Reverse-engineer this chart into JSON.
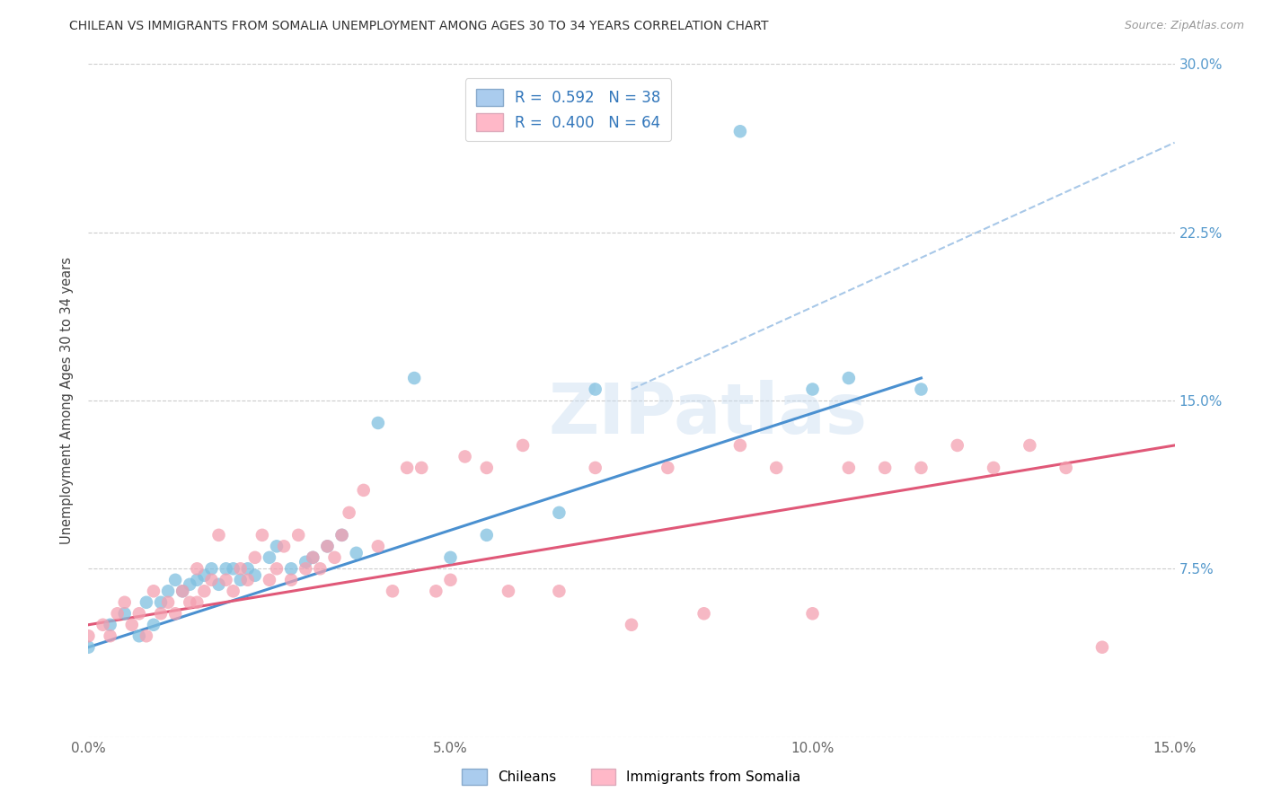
{
  "title": "CHILEAN VS IMMIGRANTS FROM SOMALIA UNEMPLOYMENT AMONG AGES 30 TO 34 YEARS CORRELATION CHART",
  "source": "Source: ZipAtlas.com",
  "ylabel": "Unemployment Among Ages 30 to 34 years",
  "xlim": [
    0.0,
    0.15
  ],
  "ylim": [
    -0.02,
    0.32
  ],
  "plot_ylim": [
    0.0,
    0.3
  ],
  "xticks": [
    0.0,
    0.05,
    0.1,
    0.15
  ],
  "xticklabels": [
    "0.0%",
    "5.0%",
    "10.0%",
    "15.0%"
  ],
  "yticks": [
    0.0,
    0.075,
    0.15,
    0.225,
    0.3
  ],
  "yticklabels_right": [
    "",
    "7.5%",
    "15.0%",
    "22.5%",
    "30.0%"
  ],
  "chilean_color": "#7fbfdf",
  "somalia_color": "#f4a0b0",
  "chilean_line_color": "#4a90d0",
  "somalia_line_color": "#e05878",
  "dashed_line_color": "#a8c8e8",
  "chilean_R": "0.592",
  "chilean_N": "38",
  "somalia_R": "0.400",
  "somalia_N": "64",
  "watermark": "ZIPatlas",
  "legend_labels": [
    "Chileans",
    "Immigrants from Somalia"
  ],
  "chilean_scatter_x": [
    0.0,
    0.003,
    0.005,
    0.007,
    0.008,
    0.009,
    0.01,
    0.011,
    0.012,
    0.013,
    0.014,
    0.015,
    0.016,
    0.017,
    0.018,
    0.019,
    0.02,
    0.021,
    0.022,
    0.023,
    0.025,
    0.026,
    0.028,
    0.03,
    0.031,
    0.033,
    0.035,
    0.037,
    0.04,
    0.045,
    0.05,
    0.055,
    0.065,
    0.07,
    0.09,
    0.1,
    0.105,
    0.115
  ],
  "chilean_scatter_y": [
    0.04,
    0.05,
    0.055,
    0.045,
    0.06,
    0.05,
    0.06,
    0.065,
    0.07,
    0.065,
    0.068,
    0.07,
    0.072,
    0.075,
    0.068,
    0.075,
    0.075,
    0.07,
    0.075,
    0.072,
    0.08,
    0.085,
    0.075,
    0.078,
    0.08,
    0.085,
    0.09,
    0.082,
    0.14,
    0.16,
    0.08,
    0.09,
    0.1,
    0.155,
    0.27,
    0.155,
    0.16,
    0.155
  ],
  "somalia_scatter_x": [
    0.0,
    0.002,
    0.003,
    0.004,
    0.005,
    0.006,
    0.007,
    0.008,
    0.009,
    0.01,
    0.011,
    0.012,
    0.013,
    0.014,
    0.015,
    0.015,
    0.016,
    0.017,
    0.018,
    0.019,
    0.02,
    0.021,
    0.022,
    0.023,
    0.024,
    0.025,
    0.026,
    0.027,
    0.028,
    0.029,
    0.03,
    0.031,
    0.032,
    0.033,
    0.034,
    0.035,
    0.036,
    0.038,
    0.04,
    0.042,
    0.044,
    0.046,
    0.048,
    0.05,
    0.052,
    0.055,
    0.058,
    0.06,
    0.065,
    0.07,
    0.075,
    0.08,
    0.085,
    0.09,
    0.095,
    0.1,
    0.105,
    0.11,
    0.115,
    0.12,
    0.125,
    0.13,
    0.135,
    0.14
  ],
  "somalia_scatter_y": [
    0.045,
    0.05,
    0.045,
    0.055,
    0.06,
    0.05,
    0.055,
    0.045,
    0.065,
    0.055,
    0.06,
    0.055,
    0.065,
    0.06,
    0.06,
    0.075,
    0.065,
    0.07,
    0.09,
    0.07,
    0.065,
    0.075,
    0.07,
    0.08,
    0.09,
    0.07,
    0.075,
    0.085,
    0.07,
    0.09,
    0.075,
    0.08,
    0.075,
    0.085,
    0.08,
    0.09,
    0.1,
    0.11,
    0.085,
    0.065,
    0.12,
    0.12,
    0.065,
    0.07,
    0.125,
    0.12,
    0.065,
    0.13,
    0.065,
    0.12,
    0.05,
    0.12,
    0.055,
    0.13,
    0.12,
    0.055,
    0.12,
    0.12,
    0.12,
    0.13,
    0.12,
    0.13,
    0.12,
    0.04
  ],
  "chilean_line_x": [
    0.0,
    0.115
  ],
  "chilean_line_y": [
    0.04,
    0.16
  ],
  "somalia_line_x": [
    0.0,
    0.15
  ],
  "somalia_line_y": [
    0.05,
    0.13
  ],
  "dashed_line_x": [
    0.075,
    0.15
  ],
  "dashed_line_y": [
    0.155,
    0.265
  ]
}
